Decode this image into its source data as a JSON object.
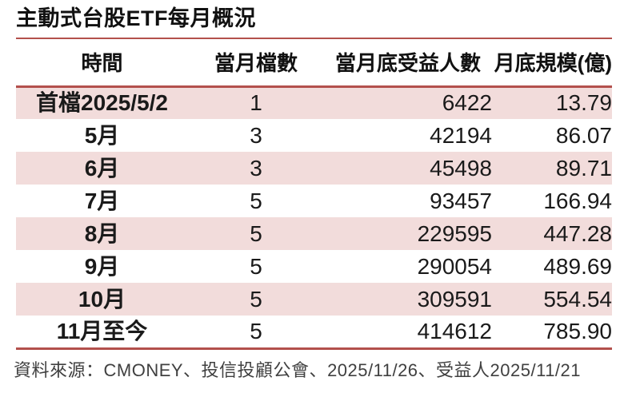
{
  "title": "主動式台股ETF每月概況",
  "footer": "資料來源：CMONEY、投信投顧公會、2025/11/26、受益人2025/11/21",
  "colors": {
    "accent": "#b3504c",
    "row_pink": "#f2dcdb",
    "footer_text": "#404040"
  },
  "chart_data": {
    "type": "table",
    "title": "主動式台股ETF每月概況",
    "columns": [
      "時間",
      "當月檔數",
      "當月底受益人數",
      "月底規模(億)"
    ],
    "rows": [
      {
        "time": "首檔2025/5/2",
        "funds": "1",
        "holders": "6422",
        "scale": "13.79"
      },
      {
        "time": "5月",
        "funds": "3",
        "holders": "42194",
        "scale": "86.07"
      },
      {
        "time": "6月",
        "funds": "3",
        "holders": "45498",
        "scale": "89.71"
      },
      {
        "time": "7月",
        "funds": "5",
        "holders": "93457",
        "scale": "166.94"
      },
      {
        "time": "8月",
        "funds": "5",
        "holders": "229595",
        "scale": "447.28"
      },
      {
        "time": "9月",
        "funds": "5",
        "holders": "290054",
        "scale": "489.69"
      },
      {
        "time": "10月",
        "funds": "5",
        "holders": "309591",
        "scale": "554.54"
      },
      {
        "time": "11月至今",
        "funds": "5",
        "holders": "414612",
        "scale": "785.90"
      }
    ],
    "layout": {
      "zebra_striping": "odd rows pink starting with first data row",
      "source_note": "資料來源：CMONEY、投信投顧公會、2025/11/26、受益人2025/11/21"
    }
  }
}
